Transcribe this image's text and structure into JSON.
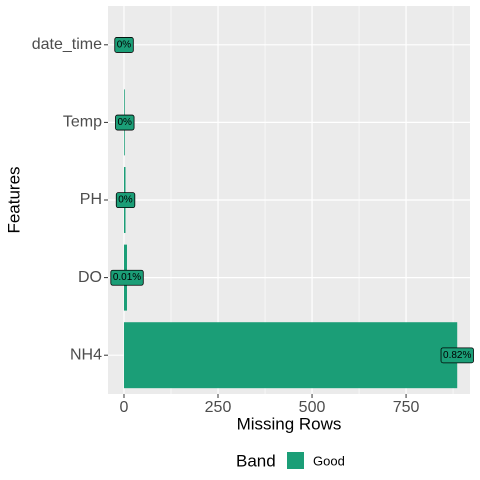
{
  "chart_data": {
    "type": "barh",
    "categories": [
      "date_time",
      "Temp",
      "PH",
      "DO",
      "NH4"
    ],
    "values": [
      0,
      2,
      4,
      8,
      886
    ],
    "percent_labels": [
      "0%",
      "0%",
      "0%",
      "0.01%",
      "0.82%"
    ],
    "color": "#1b9e77",
    "xlabel": "Missing Rows",
    "ylabel": "Features",
    "xlim": [
      -42.5,
      920
    ],
    "xticks": [
      0,
      250,
      500,
      750
    ],
    "minor_xticks": [
      125,
      375,
      625,
      875
    ],
    "grid": true,
    "legend": {
      "title": "Band",
      "entries": [
        "Good"
      ],
      "position": "bottom"
    }
  }
}
